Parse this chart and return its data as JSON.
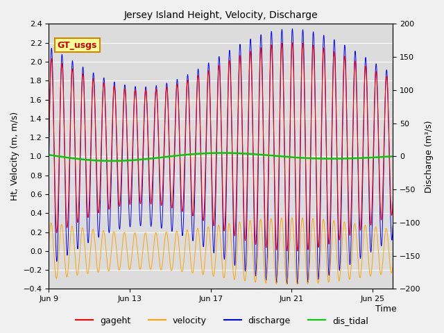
{
  "title": "Jersey Island Height, Velocity, Discharge",
  "xlabel": "Time",
  "ylabel_left": "Ht, Velocity (m, m/s)",
  "ylabel_right": "Discharge (m³/s)",
  "ylim_left": [
    -0.4,
    2.4
  ],
  "ylim_right": [
    -200,
    200
  ],
  "xlim": [
    0,
    17
  ],
  "xtick_positions": [
    0,
    4,
    8,
    12,
    16
  ],
  "xtick_labels": [
    "Jun 9",
    "Jun 13",
    "Jun 17",
    "Jun 21",
    "Jun 25"
  ],
  "ytick_left": [
    -0.4,
    -0.2,
    0.0,
    0.2,
    0.4,
    0.6,
    0.8,
    1.0,
    1.2,
    1.4,
    1.6,
    1.8,
    2.0,
    2.2,
    2.4
  ],
  "ytick_right": [
    -200,
    -150,
    -100,
    -50,
    0,
    50,
    100,
    150,
    200
  ],
  "colors": {
    "gageht": "#ff0000",
    "velocity": "#ffa500",
    "discharge": "#0000ff",
    "dis_tidal": "#00cc00"
  },
  "legend_label": "GT_usgs",
  "legend_box_color": "#ffff99",
  "legend_box_edge": "#cc8800",
  "plot_bg": "#dcdcdc",
  "fig_bg": "#f0f0f0",
  "grid_color": "#ffffff",
  "tidal_period_hours": 12.42,
  "duration_days": 17,
  "n_points": 3000
}
